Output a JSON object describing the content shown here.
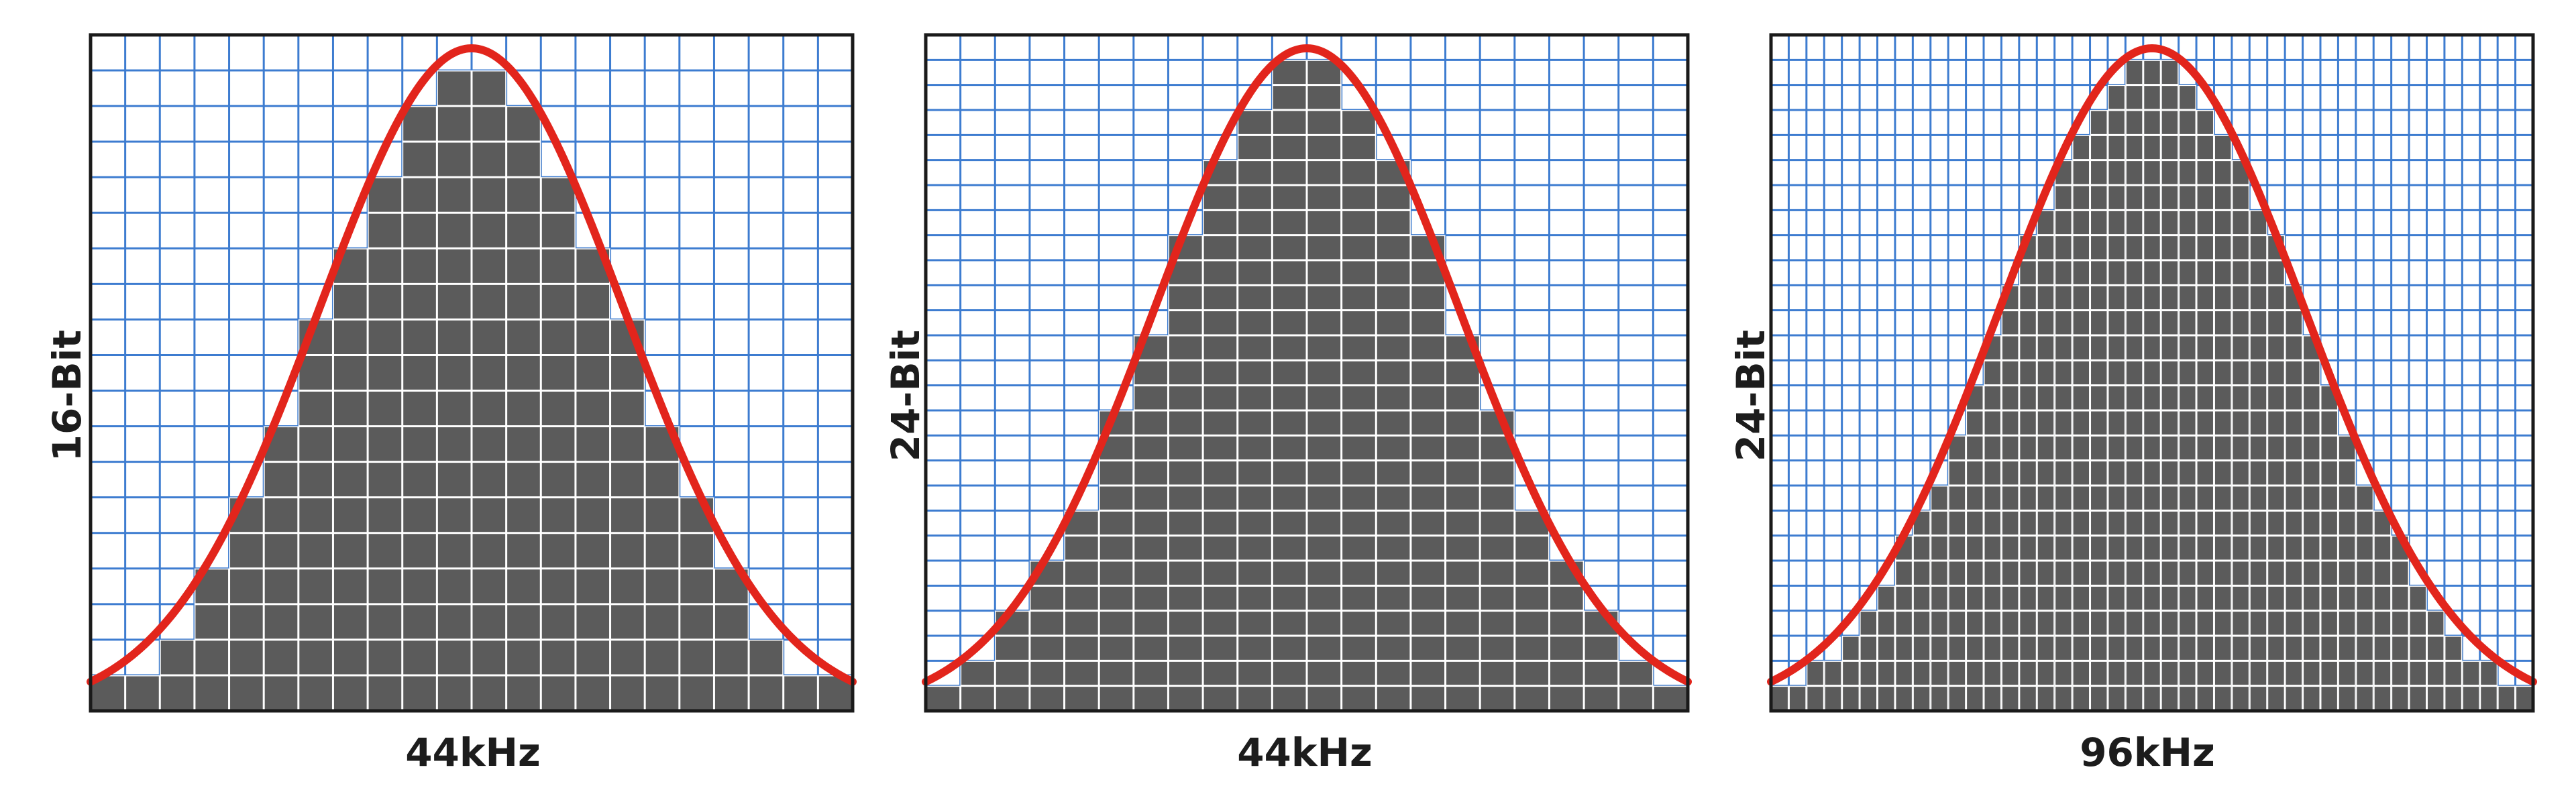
{
  "colors": {
    "grid": "#3d7cd0",
    "curve": "#e2251c",
    "fill": "#5b5b5b",
    "frame": "#1a1a1a",
    "label": "#1c1c1c"
  },
  "panels": [
    {
      "bit_label": "16-Bit",
      "rate_label": "44kHz",
      "columns": 22,
      "rows": 19
    },
    {
      "bit_label": "24-Bit",
      "rate_label": "44kHz",
      "columns": 22,
      "rows": 27
    },
    {
      "bit_label": "24-Bit",
      "rate_label": "96kHz",
      "columns": 43,
      "rows": 27
    }
  ]
}
